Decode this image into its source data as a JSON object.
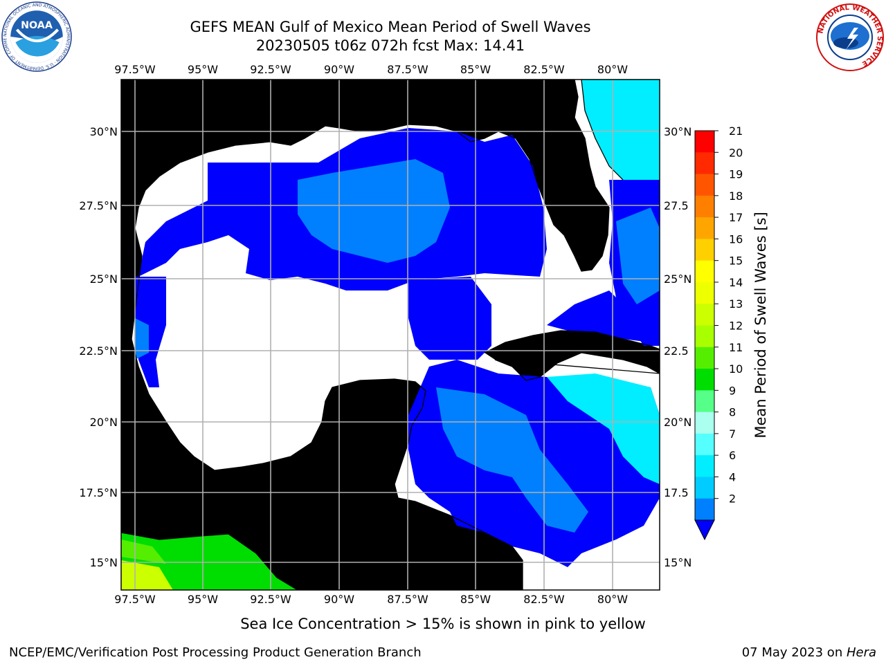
{
  "header": {
    "title_line1": "GEFS MEAN Gulf of Mexico Mean Period of Swell Waves",
    "title_line2": "20230505 t06z 072h fcst   Max: 14.41"
  },
  "logos": {
    "noaa_text": "NOAA",
    "noaa_ring_text": "NATIONAL OCEANIC AND ATMOSPHERIC ADMINISTRATION · U.S. DEPARTMENT OF COMMERCE",
    "nws_ring_text": "NATIONAL WEATHER SERVICE"
  },
  "map": {
    "lon_labels": [
      "97.5°W",
      "95°W",
      "92.5°W",
      "90°W",
      "87.5°W",
      "85°W",
      "82.5°W",
      "80°W"
    ],
    "lat_labels_left": [
      "30°N",
      "27.5°N",
      "25°N",
      "22.5°N",
      "20°N",
      "17.5°N",
      "15°N"
    ],
    "lat_labels_right": [
      "30°N",
      "27.5",
      "25°N",
      "22.5",
      "20°N",
      "17.5",
      "15°N"
    ],
    "land_color": "#eeeedc",
    "grid_color": "#b0b0b0"
  },
  "colorbar": {
    "label": "Mean Period of Swell Waves [s]",
    "ticks": [
      "21",
      "20",
      "19",
      "18",
      "17",
      "16",
      "15",
      "14",
      "13",
      "12",
      "11",
      "10",
      "9",
      "8",
      "7",
      "6",
      "4",
      "2"
    ],
    "colors": [
      "#ff0000",
      "#ff2a00",
      "#ff5500",
      "#ff7f00",
      "#ffa500",
      "#ffd000",
      "#ffff00",
      "#eeff00",
      "#ccff00",
      "#a8ff00",
      "#55ee00",
      "#00dd00",
      "#55ff88",
      "#aaffee",
      "#55ffff",
      "#00eeff",
      "#00ccff",
      "#0080ff"
    ],
    "extend_color": "#0000ff"
  },
  "notes": {
    "sea_ice": "Sea Ice Concentration > 15% is shown in pink to yellow"
  },
  "footer": {
    "left": "NCEP/EMC/Verification Post Processing Product Generation Branch",
    "right_prefix": "07 May 2023 on ",
    "right_host": "Hera"
  }
}
